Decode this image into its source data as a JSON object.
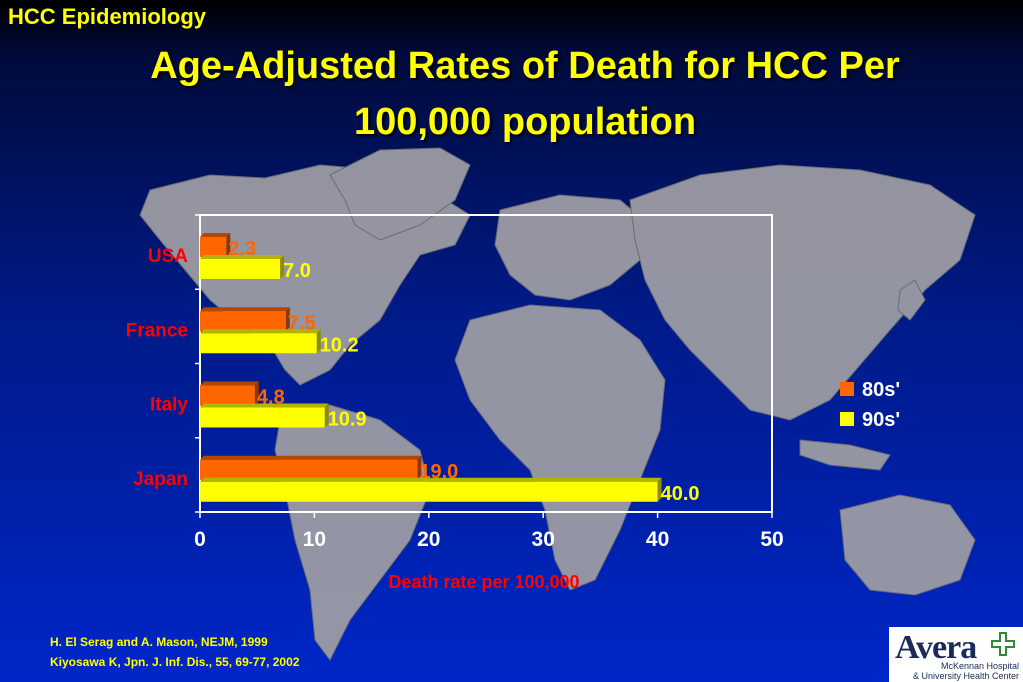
{
  "slide": {
    "section_label": "HCC Epidemiology",
    "title_line1": "Age-Adjusted Rates of Death for HCC Per",
    "title_line2": "100,000 population",
    "references": [
      "H. El Serag and A. Mason, NEJM, 1999",
      "Kiyosawa K, Jpn. J. Inf. Dis., 55, 69-77, 2002"
    ],
    "logo": {
      "name": "Avera",
      "sub_line1": "McKennan Hospital",
      "sub_line2": "& University Health Center"
    }
  },
  "colors": {
    "series_80s": "#ff6600",
    "series_90s": "#ffff00",
    "category_label": "#ff0000",
    "axis_text": "#ffffff",
    "xlabel": "#ff0000"
  },
  "chart_data": {
    "type": "bar",
    "orientation": "horizontal",
    "categories": [
      "USA",
      "France",
      "Italy",
      "Japan"
    ],
    "series": [
      {
        "name": "80s'",
        "values": [
          2.3,
          7.5,
          4.8,
          19.0
        ]
      },
      {
        "name": "90s'",
        "values": [
          7.0,
          10.2,
          10.9,
          40.0
        ]
      }
    ],
    "value_labels": [
      [
        "2.3",
        "7.5",
        "4.8",
        "19.0"
      ],
      [
        "7.0",
        "10.2",
        "10.9",
        "40.0"
      ]
    ],
    "xlabel": "Death rate per 100,000",
    "xlim": [
      0,
      50
    ],
    "xticks": [
      "0",
      "10",
      "20",
      "30",
      "40",
      "50"
    ],
    "grid": false,
    "legend": "right"
  }
}
